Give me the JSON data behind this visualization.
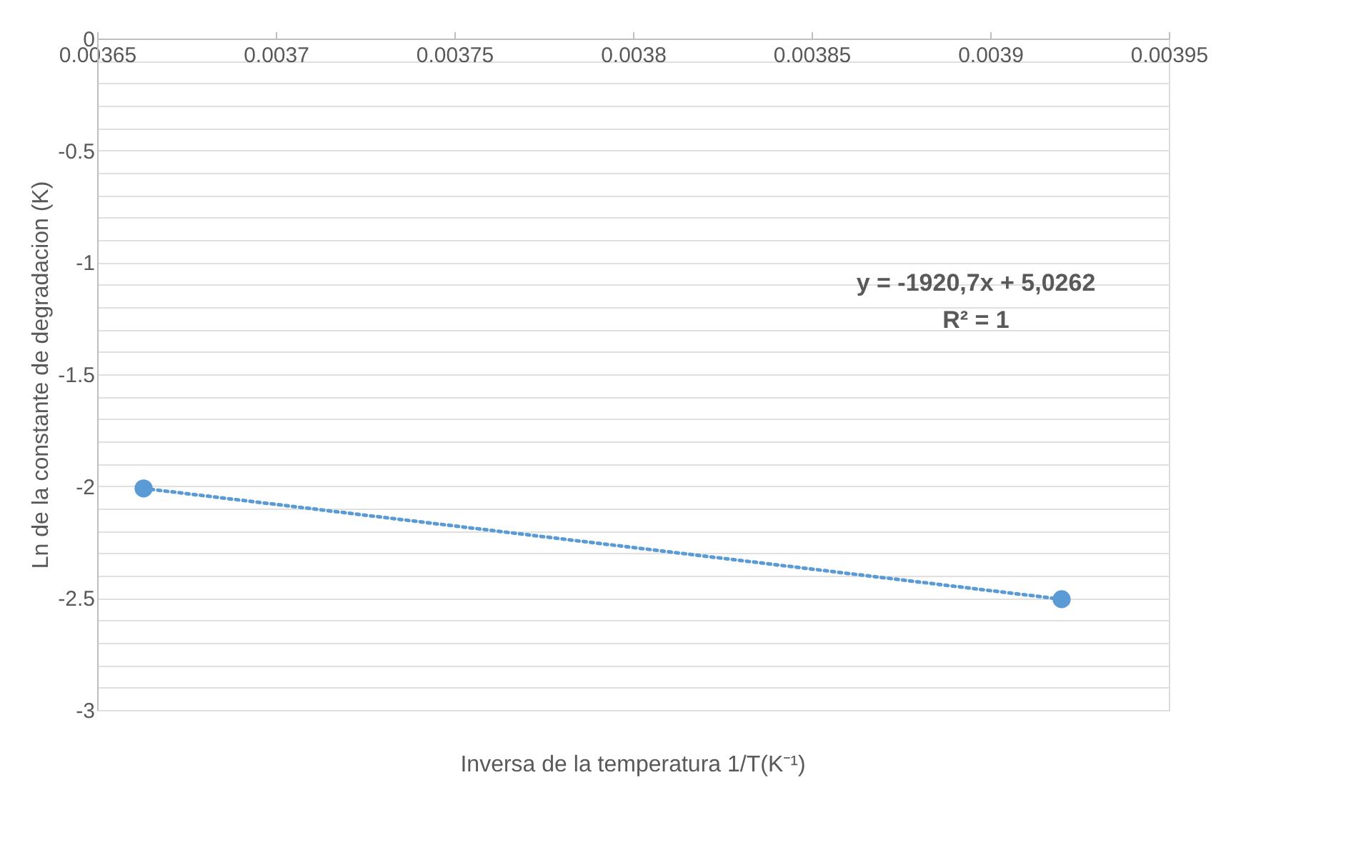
{
  "chart_data": {
    "type": "scatter",
    "xlabel": "Inversa de la temperatura 1/T(K⁻¹)",
    "ylabel": "Ln de la constante de degradacion  (K)",
    "series": [
      {
        "color": "#5b9bd5",
        "marker": "circle",
        "values": [
          -2.01,
          -2.505
        ]
      },
      {
        "type": "line",
        "color": "#5b9bd5",
        "line_style": "dotted",
        "marker": "none",
        "values": [
          -2.01,
          -2.505
        ]
      }
    ],
    "x": [
      0.003663,
      0.00392
    ],
    "xlim": [
      0.00365,
      0.00395
    ],
    "xticks": [
      0.00365,
      0.0037,
      0.00375,
      0.0038,
      0.00385,
      0.0039,
      0.00395
    ],
    "ylim": [
      -3,
      0
    ],
    "yticks": [
      -3,
      {
        "value": -2.9,
        "label": null
      },
      {
        "value": -2.8,
        "label": null
      },
      {
        "value": -2.7,
        "label": null
      },
      {
        "value": -2.6,
        "label": null
      },
      -2.5,
      {
        "value": -2.4,
        "label": null
      },
      {
        "value": -2.3,
        "label": null
      },
      {
        "value": -2.2,
        "label": null
      },
      {
        "value": -2.1,
        "label": null
      },
      -2,
      {
        "value": -1.9,
        "label": null
      },
      {
        "value": -1.8,
        "label": null
      },
      {
        "value": -1.7,
        "label": null
      },
      {
        "value": -1.6,
        "label": null
      },
      -1.5,
      {
        "value": -1.4,
        "label": null
      },
      {
        "value": -1.3,
        "label": null
      },
      {
        "value": -1.2,
        "label": null
      },
      {
        "value": -1.1,
        "label": null
      },
      -1,
      {
        "value": -0.9,
        "label": null
      },
      {
        "value": -0.8,
        "label": null
      },
      {
        "value": -0.7,
        "label": null
      },
      {
        "value": -0.6,
        "label": null
      },
      -0.5,
      {
        "value": -0.4,
        "label": null
      },
      {
        "value": -0.3,
        "label": null
      },
      {
        "value": -0.2,
        "label": null
      },
      {
        "value": -0.1,
        "label": null
      },
      0
    ],
    "grid": "y",
    "annotations": [
      "y = -1920,7x + 5,0262",
      "R² = 1"
    ]
  }
}
